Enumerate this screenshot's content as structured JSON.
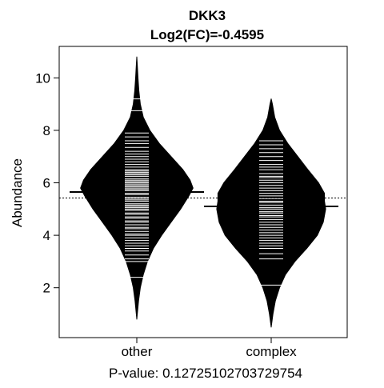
{
  "chart_data": {
    "type": "beanplot",
    "title": "DKK3",
    "subtitle": "Log2(FC)=-0.4595",
    "xlabel": "P-value: 0.12725102703729754",
    "ylabel": "Abundance",
    "categories": [
      "other",
      "complex"
    ],
    "ylim": [
      0.1,
      11.2
    ],
    "y_ticks": [
      2,
      4,
      6,
      8,
      10
    ],
    "y_tick_labels": [
      "2",
      "4",
      "6",
      "8",
      "10"
    ],
    "overall_mean": 5.42,
    "group_means": [
      5.65,
      5.1
    ],
    "distributions": [
      {
        "name": "other",
        "y_min": 0.8,
        "y_max": 10.8,
        "density": [
          [
            0.8,
            0.0
          ],
          [
            1.5,
            0.03
          ],
          [
            2.0,
            0.06
          ],
          [
            2.5,
            0.11
          ],
          [
            3.0,
            0.18
          ],
          [
            3.5,
            0.28
          ],
          [
            4.0,
            0.42
          ],
          [
            4.5,
            0.58
          ],
          [
            5.0,
            0.74
          ],
          [
            5.5,
            0.88
          ],
          [
            5.8,
            0.95
          ],
          [
            6.1,
            0.9
          ],
          [
            6.5,
            0.78
          ],
          [
            7.0,
            0.58
          ],
          [
            7.5,
            0.38
          ],
          [
            8.0,
            0.22
          ],
          [
            8.5,
            0.11
          ],
          [
            9.0,
            0.06
          ],
          [
            9.5,
            0.035
          ],
          [
            10.0,
            0.02
          ],
          [
            10.5,
            0.008
          ],
          [
            10.8,
            0.0
          ]
        ],
        "long_lines": [
          2.4,
          8.75,
          9.2
        ],
        "observations": [
          3.0,
          3.1,
          3.25,
          3.4,
          3.5,
          3.6,
          3.7,
          3.8,
          3.9,
          4.0,
          4.05,
          4.15,
          4.25,
          4.3,
          4.4,
          4.5,
          4.55,
          4.65,
          4.7,
          4.8,
          4.85,
          4.95,
          5.0,
          5.05,
          5.1,
          5.15,
          5.2,
          5.3,
          5.35,
          5.4,
          5.45,
          5.55,
          5.6,
          5.65,
          5.7,
          5.75,
          5.8,
          5.85,
          5.9,
          5.95,
          6.0,
          6.05,
          6.1,
          6.15,
          6.25,
          6.3,
          6.35,
          6.4,
          6.45,
          6.5,
          6.6,
          6.7,
          6.8,
          6.9,
          7.0,
          7.1,
          7.2,
          7.35,
          7.5,
          7.6,
          7.75,
          7.9
        ]
      },
      {
        "name": "complex",
        "y_min": 0.5,
        "y_max": 9.2,
        "density": [
          [
            0.5,
            0.0
          ],
          [
            1.0,
            0.03
          ],
          [
            1.5,
            0.07
          ],
          [
            2.0,
            0.14
          ],
          [
            2.5,
            0.24
          ],
          [
            3.0,
            0.4
          ],
          [
            3.5,
            0.6
          ],
          [
            4.0,
            0.78
          ],
          [
            4.5,
            0.88
          ],
          [
            5.0,
            0.92
          ],
          [
            5.3,
            0.9
          ],
          [
            5.6,
            0.9
          ],
          [
            6.0,
            0.8
          ],
          [
            6.5,
            0.62
          ],
          [
            7.0,
            0.45
          ],
          [
            7.5,
            0.28
          ],
          [
            8.0,
            0.14
          ],
          [
            8.5,
            0.06
          ],
          [
            9.0,
            0.02
          ],
          [
            9.2,
            0.0
          ]
        ],
        "long_lines": [
          2.1
        ],
        "observations": [
          3.1,
          3.3,
          3.5,
          3.6,
          3.7,
          3.8,
          3.9,
          4.0,
          4.1,
          4.2,
          4.3,
          4.4,
          4.5,
          4.6,
          4.7,
          4.75,
          4.85,
          4.9,
          5.0,
          5.05,
          5.15,
          5.25,
          5.3,
          5.4,
          5.5,
          5.6,
          5.7,
          5.8,
          5.9,
          6.0,
          6.1,
          6.2,
          6.25,
          6.35,
          6.5,
          6.6,
          6.7,
          6.85,
          7.0,
          7.15,
          7.3,
          7.45,
          7.6
        ]
      }
    ],
    "grid": false,
    "legend": "none",
    "colors": {
      "fill": "#000000",
      "lines": "#ffffff",
      "axis": "#000000"
    }
  }
}
